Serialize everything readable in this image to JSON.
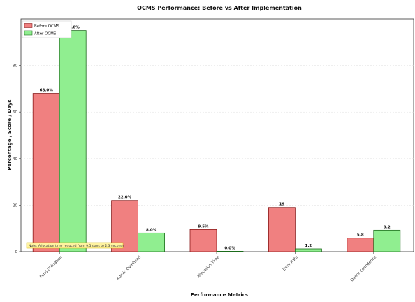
{
  "chart_data": {
    "type": "bar",
    "title": "OCMS Performance: Before vs After Implementation",
    "xlabel": "Performance Metrics",
    "ylabel": "Percentage / Score / Days",
    "categories": [
      "Fund Utilization",
      "Admin Overhead",
      "Allocation Time",
      "Error Rate",
      "Donor Confidence"
    ],
    "series": [
      {
        "name": "Before OCMS",
        "values": [
          68.0,
          22.0,
          9.5,
          19,
          5.8
        ],
        "labels": [
          "68.0%",
          "22.0%",
          "9.5%",
          "19",
          "5.8"
        ],
        "color": "#f08080"
      },
      {
        "name": "After OCMS",
        "values": [
          95.0,
          8.0,
          0.0,
          1.2,
          9.2
        ],
        "labels": [
          "95.0%",
          "8.0%",
          "0.0%",
          "1.2",
          "9.2"
        ],
        "color": "#90ee90"
      }
    ],
    "ylim": [
      0,
      100
    ],
    "yticks": [
      0,
      20,
      40,
      60,
      80
    ],
    "grid": true,
    "legend_position": "top-left",
    "note": "Note: Allocation time reduced from 9.5 days to 2.3 seconds"
  }
}
